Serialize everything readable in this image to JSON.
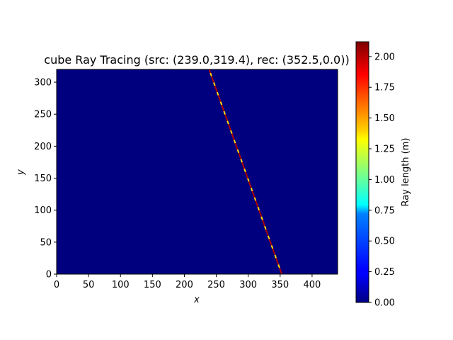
{
  "chart_data": {
    "type": "heatmap",
    "title": "cube Ray Tracing (src: (239.0,319.4), rec: (352.5,0.0))",
    "xlabel": "x",
    "ylabel": "y",
    "xlim": [
      0,
      440
    ],
    "ylim": [
      0,
      320
    ],
    "xticks": [
      "0",
      "50",
      "100",
      "150",
      "200",
      "250",
      "300",
      "350",
      "400"
    ],
    "yticks": [
      "0",
      "50",
      "100",
      "150",
      "200",
      "250",
      "300"
    ],
    "background_value": 0.0,
    "colormap": "jet",
    "colorbar": {
      "label": "Ray length (m)",
      "range": [
        0.0,
        2.12
      ],
      "ticks": [
        "0.00",
        "0.25",
        "0.50",
        "0.75",
        "1.00",
        "1.25",
        "1.50",
        "1.75",
        "2.00"
      ]
    },
    "ray": {
      "source": [
        239.0,
        319.4
      ],
      "receiver": [
        352.5,
        0.0
      ]
    },
    "grid": false
  },
  "colors": {
    "background_cell": "#00007f",
    "ray_high": "#b00000",
    "ray_mid": "#ffe000"
  }
}
